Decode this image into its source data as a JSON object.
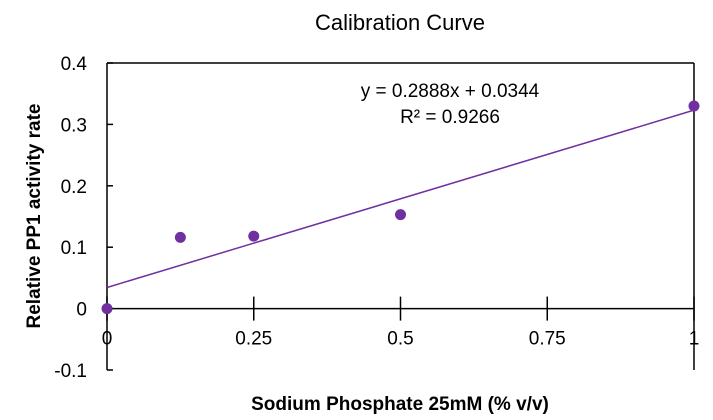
{
  "chart_data": {
    "type": "scatter",
    "title": "Calibration Curve",
    "xlabel": "Sodium Phosphate 25mM (% v/v)",
    "ylabel": "Relative PP1 activity rate",
    "xlim": [
      0,
      1
    ],
    "ylim": [
      -0.1,
      0.4
    ],
    "x_ticks": [
      0,
      0.25,
      0.5,
      0.75,
      1
    ],
    "x_tick_labels": [
      "0",
      "0.25",
      "0.5",
      "0.75",
      "1"
    ],
    "y_ticks": [
      -0.1,
      0,
      0.1,
      0.2,
      0.3,
      0.4
    ],
    "y_tick_labels": [
      "-0.1",
      "0",
      "0.1",
      "0.2",
      "0.3",
      "0.4"
    ],
    "grid": false,
    "series": [
      {
        "name": "data",
        "x": [
          0,
          0.125,
          0.25,
          0.5,
          1
        ],
        "y": [
          0,
          0.116,
          0.118,
          0.153,
          0.33
        ],
        "color": "#7030A0"
      }
    ],
    "trendline": {
      "type": "linear",
      "slope": 0.2888,
      "intercept": 0.0344,
      "color": "#7030A0"
    },
    "annotations": {
      "equation": "y = 0.2888x + 0.0344",
      "r_squared": "R² = 0.9266"
    }
  }
}
